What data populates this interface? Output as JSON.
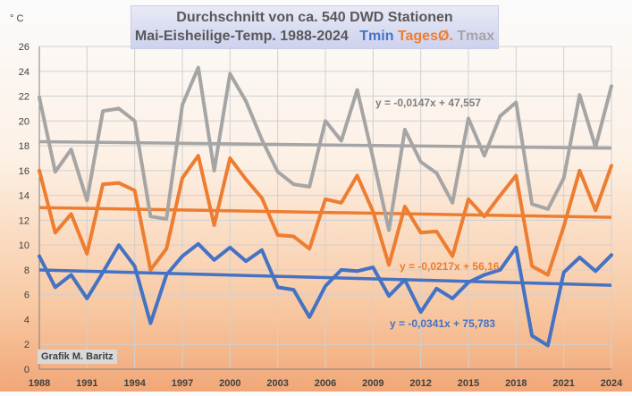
{
  "title_line1": "Durchschnitt von ca. 540 DWD Stationen",
  "title_line2_prefix": "Mai-Eisheilige-Temp. 1988-2024",
  "title_legend": [
    {
      "label": "Tmin",
      "color": "#4472c4"
    },
    {
      "label": "TagesØ.",
      "color": "#ed7d31"
    },
    {
      "label": "Tmax",
      "color": "#a5a5a5"
    }
  ],
  "credit": "Grafik M. Baritz",
  "chart_data": {
    "type": "line",
    "ylabel": "° C",
    "ylim": [
      0,
      26
    ],
    "yticks": [
      0,
      2,
      4,
      6,
      8,
      10,
      12,
      14,
      16,
      18,
      20,
      22,
      24,
      26
    ],
    "xlim": [
      1988,
      2024
    ],
    "xticks": [
      1988,
      1991,
      1994,
      1997,
      2000,
      2003,
      2006,
      2009,
      2012,
      2015,
      2018,
      2021,
      2024
    ],
    "grid": true,
    "x": [
      1988,
      1989,
      1990,
      1991,
      1992,
      1993,
      1994,
      1995,
      1996,
      1997,
      1998,
      1999,
      2000,
      2001,
      2002,
      2003,
      2004,
      2005,
      2006,
      2007,
      2008,
      2009,
      2010,
      2011,
      2012,
      2013,
      2014,
      2015,
      2016,
      2017,
      2018,
      2019,
      2020,
      2021,
      2022,
      2023,
      2024
    ],
    "series": [
      {
        "name": "Tmax",
        "color": "#a5a5a5",
        "values": [
          21.9,
          15.9,
          17.7,
          13.6,
          20.8,
          21.0,
          20.0,
          12.3,
          12.1,
          21.3,
          24.3,
          16.0,
          23.8,
          21.6,
          18.5,
          15.9,
          14.9,
          14.7,
          20.0,
          18.4,
          22.5,
          17.0,
          11.2,
          19.3,
          16.7,
          15.8,
          13.4,
          20.2,
          17.2,
          20.4,
          21.5,
          13.3,
          12.9,
          15.4,
          22.1,
          17.9,
          22.8
        ]
      },
      {
        "name": "TagesØ.",
        "color": "#ed7d31",
        "values": [
          16.0,
          11.0,
          12.5,
          9.3,
          14.9,
          15.0,
          14.4,
          8.0,
          9.7,
          15.4,
          17.2,
          11.6,
          17.0,
          15.3,
          13.8,
          10.8,
          10.7,
          9.7,
          13.7,
          13.4,
          15.6,
          12.7,
          8.4,
          13.1,
          11.0,
          11.1,
          9.1,
          13.7,
          12.3,
          14.0,
          15.6,
          8.3,
          7.6,
          11.5,
          16.0,
          12.8,
          16.4
        ]
      },
      {
        "name": "Tmin",
        "color": "#4472c4",
        "values": [
          9.1,
          6.6,
          7.6,
          5.7,
          7.8,
          10.0,
          8.3,
          3.7,
          7.6,
          9.1,
          10.1,
          8.8,
          9.8,
          8.7,
          9.6,
          6.6,
          6.4,
          4.2,
          6.7,
          8.0,
          7.9,
          8.2,
          5.9,
          7.2,
          4.6,
          6.5,
          5.7,
          7.0,
          7.6,
          8.0,
          9.8,
          2.7,
          1.9,
          7.8,
          9.0,
          7.9,
          9.2
        ]
      }
    ],
    "trendlines": [
      {
        "series": "Tmax",
        "label": "y = -0,0147x + 47,557",
        "slope": -0.0147,
        "intercept": 47.557,
        "color": "#a5a5a5",
        "label_color": "#7f7f7f"
      },
      {
        "series": "TagesØ.",
        "label": "y = -0,0217x + 56,16",
        "slope": -0.0217,
        "intercept": 56.16,
        "color": "#ed7d31",
        "label_color": "#ed7d31"
      },
      {
        "series": "Tmin",
        "label": "y = -0,0341x + 75,783",
        "slope": -0.0341,
        "intercept": 75.783,
        "color": "#4472c4",
        "label_color": "#4472c4"
      }
    ]
  }
}
